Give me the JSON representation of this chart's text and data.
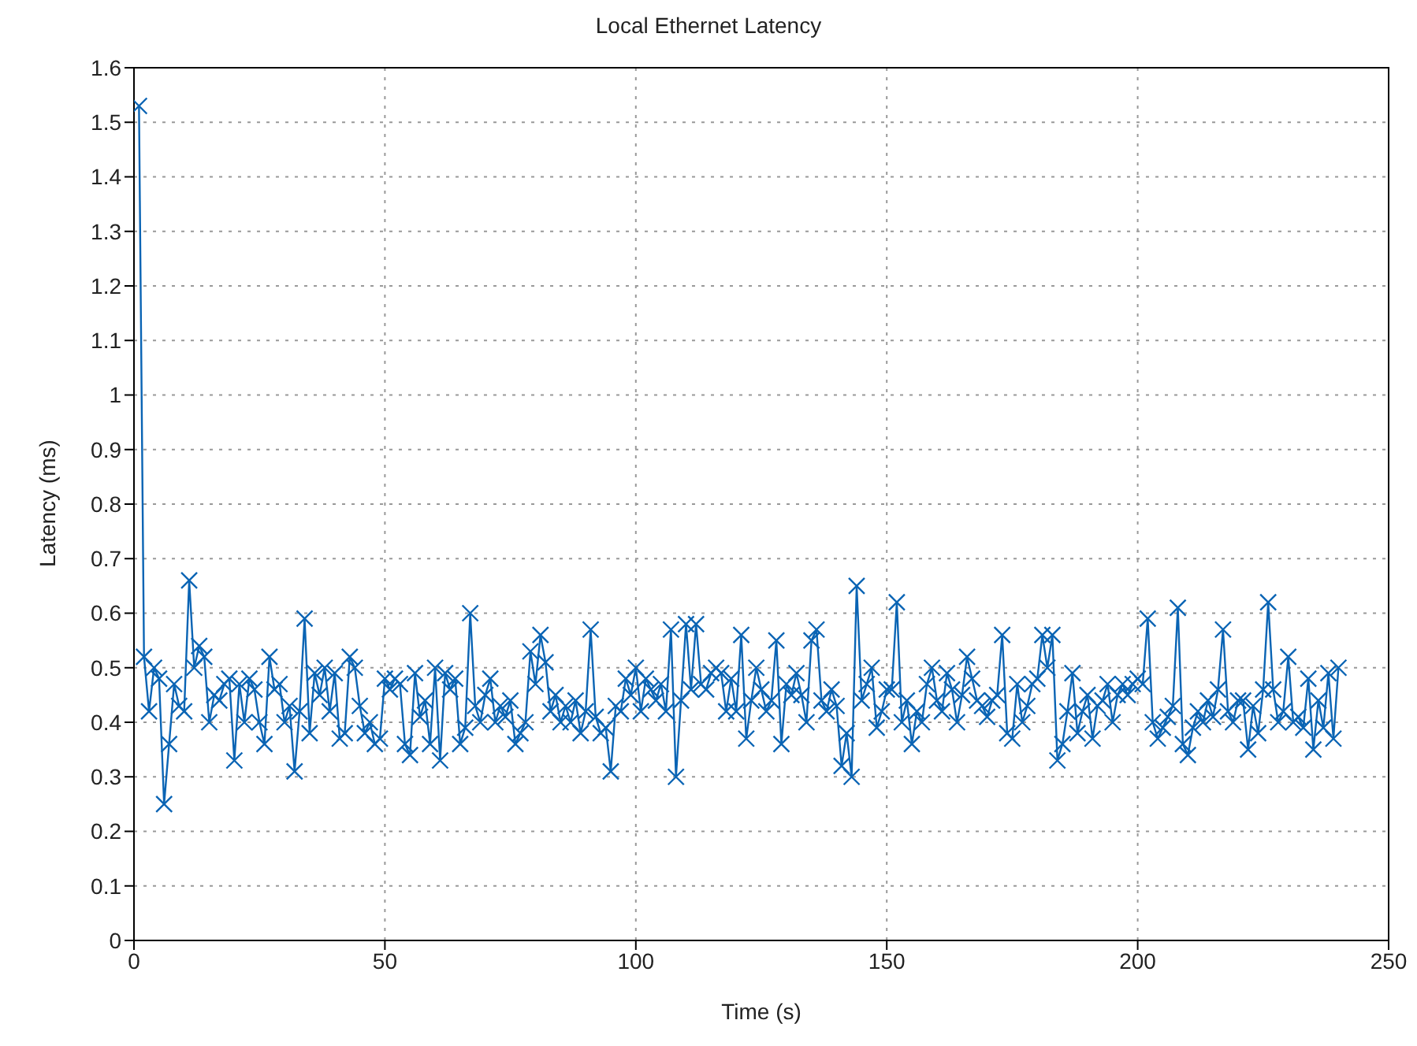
{
  "chart_data": {
    "type": "line",
    "title": "Local Ethernet Latency",
    "xlabel": "Time (s)",
    "ylabel": "Latency (ms)",
    "x": [
      1,
      2,
      3,
      4,
      5,
      6,
      7,
      8,
      9,
      10,
      11,
      12,
      13,
      14,
      15,
      16,
      17,
      18,
      19,
      20,
      21,
      22,
      23,
      24,
      25,
      26,
      27,
      28,
      29,
      30,
      31,
      32,
      33,
      34,
      35,
      36,
      37,
      38,
      39,
      40,
      41,
      42,
      43,
      44,
      45,
      46,
      47,
      48,
      49,
      50,
      51,
      52,
      53,
      54,
      55,
      56,
      57,
      58,
      59,
      60,
      61,
      62,
      63,
      64,
      65,
      66,
      67,
      68,
      69,
      70,
      71,
      72,
      73,
      74,
      75,
      76,
      77,
      78,
      79,
      80,
      81,
      82,
      83,
      84,
      85,
      86,
      87,
      88,
      89,
      90,
      91,
      92,
      93,
      94,
      95,
      96,
      97,
      98,
      99,
      100,
      101,
      102,
      103,
      104,
      105,
      106,
      107,
      108,
      109,
      110,
      111,
      112,
      113,
      114,
      115,
      116,
      117,
      118,
      119,
      120,
      121,
      122,
      123,
      124,
      125,
      126,
      127,
      128,
      129,
      130,
      131,
      132,
      133,
      134,
      135,
      136,
      137,
      138,
      139,
      140,
      141,
      142,
      143,
      144,
      145,
      146,
      147,
      148,
      149,
      150,
      151,
      152,
      153,
      154,
      155,
      156,
      157,
      158,
      159,
      160,
      161,
      162,
      163,
      164,
      165,
      166,
      167,
      168,
      169,
      170,
      171,
      172,
      173,
      174,
      175,
      176,
      177,
      178,
      179,
      180,
      181,
      182,
      183,
      184,
      185,
      186,
      187,
      188,
      189,
      190,
      191,
      192,
      193,
      194,
      195,
      196,
      197,
      198,
      199,
      200,
      201,
      202,
      203,
      204,
      205,
      206,
      207,
      208,
      209,
      210,
      211,
      212,
      213,
      214,
      215,
      216,
      217,
      218,
      219,
      220,
      221,
      222,
      223,
      224,
      225,
      226,
      227,
      228,
      229,
      230,
      231,
      232,
      233,
      234,
      235,
      236,
      237,
      238,
      239,
      240
    ],
    "series": [
      {
        "color": "#0a64b4",
        "values": [
          1.53,
          0.52,
          0.42,
          0.5,
          0.48,
          0.25,
          0.36,
          0.47,
          0.43,
          0.42,
          0.66,
          0.5,
          0.54,
          0.52,
          0.4,
          0.45,
          0.44,
          0.47,
          0.48,
          0.33,
          0.47,
          0.4,
          0.48,
          0.46,
          0.4,
          0.36,
          0.52,
          0.46,
          0.47,
          0.4,
          0.43,
          0.31,
          0.42,
          0.59,
          0.38,
          0.49,
          0.45,
          0.5,
          0.42,
          0.49,
          0.37,
          0.38,
          0.52,
          0.5,
          0.43,
          0.38,
          0.4,
          0.36,
          0.37,
          0.48,
          0.46,
          0.48,
          0.47,
          0.36,
          0.34,
          0.49,
          0.41,
          0.44,
          0.36,
          0.5,
          0.33,
          0.49,
          0.46,
          0.48,
          0.36,
          0.39,
          0.6,
          0.43,
          0.4,
          0.45,
          0.48,
          0.4,
          0.43,
          0.41,
          0.44,
          0.36,
          0.38,
          0.4,
          0.53,
          0.47,
          0.56,
          0.51,
          0.42,
          0.45,
          0.4,
          0.43,
          0.4,
          0.44,
          0.38,
          0.42,
          0.57,
          0.41,
          0.38,
          0.39,
          0.31,
          0.43,
          0.42,
          0.48,
          0.45,
          0.5,
          0.42,
          0.48,
          0.46,
          0.44,
          0.47,
          0.42,
          0.57,
          0.3,
          0.44,
          0.58,
          0.46,
          0.58,
          0.47,
          0.46,
          0.49,
          0.5,
          0.49,
          0.42,
          0.48,
          0.42,
          0.56,
          0.37,
          0.44,
          0.5,
          0.46,
          0.42,
          0.44,
          0.55,
          0.36,
          0.47,
          0.45,
          0.49,
          0.45,
          0.4,
          0.55,
          0.57,
          0.44,
          0.42,
          0.46,
          0.43,
          0.32,
          0.38,
          0.3,
          0.65,
          0.44,
          0.47,
          0.5,
          0.39,
          0.42,
          0.46,
          0.46,
          0.62,
          0.4,
          0.44,
          0.36,
          0.42,
          0.4,
          0.47,
          0.5,
          0.44,
          0.42,
          0.49,
          0.46,
          0.4,
          0.45,
          0.52,
          0.48,
          0.44,
          0.43,
          0.41,
          0.44,
          0.45,
          0.56,
          0.38,
          0.37,
          0.47,
          0.4,
          0.43,
          0.47,
          0.48,
          0.56,
          0.5,
          0.56,
          0.33,
          0.36,
          0.42,
          0.49,
          0.38,
          0.42,
          0.45,
          0.37,
          0.43,
          0.44,
          0.47,
          0.4,
          0.45,
          0.47,
          0.45,
          0.47,
          0.48,
          0.47,
          0.59,
          0.4,
          0.37,
          0.39,
          0.41,
          0.43,
          0.61,
          0.36,
          0.34,
          0.39,
          0.42,
          0.4,
          0.44,
          0.41,
          0.46,
          0.57,
          0.42,
          0.4,
          0.44,
          0.44,
          0.35,
          0.43,
          0.38,
          0.46,
          0.62,
          0.46,
          0.4,
          0.42,
          0.52,
          0.4,
          0.41,
          0.39,
          0.48,
          0.35,
          0.44,
          0.39,
          0.49,
          0.37,
          0.5
        ]
      }
    ],
    "xlim": [
      0,
      250
    ],
    "xticks": [
      0,
      50,
      100,
      150,
      200,
      250
    ],
    "ylim": [
      0,
      1.6
    ],
    "yticks": [
      0,
      0.1,
      0.2,
      0.3,
      0.4,
      0.5,
      0.6,
      0.7,
      0.8,
      0.9,
      1,
      1.1,
      1.2,
      1.3,
      1.4,
      1.5,
      1.6
    ],
    "grid": true,
    "legend": false,
    "marker": "cross",
    "line_style": "solid"
  }
}
